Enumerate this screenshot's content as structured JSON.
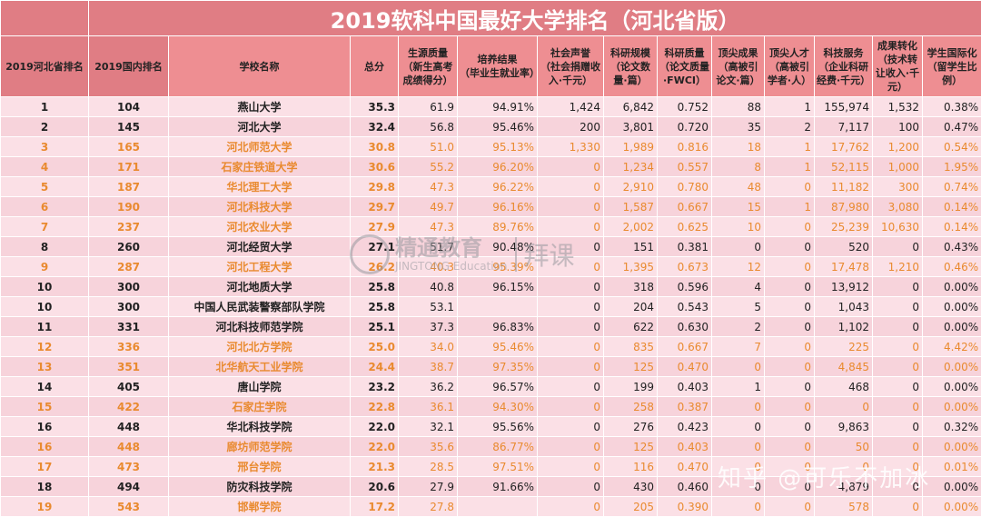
{
  "title": "2019软科中国最好大学排名（河北省版）",
  "headers": [
    {
      "main": "2019河北省排名",
      "sub": ""
    },
    {
      "main": "2019国内排名",
      "sub": ""
    },
    {
      "main": "学校名称",
      "sub": ""
    },
    {
      "main": "总分",
      "sub": ""
    },
    {
      "main": "生源质量",
      "sub": "（新生高考成绩得分）"
    },
    {
      "main": "培养结果",
      "sub": "（毕业生就业率）"
    },
    {
      "main": "社会声誉",
      "sub": "（社会捐赠收入·千元）"
    },
    {
      "main": "科研规模",
      "sub": "（论文数量·篇）"
    },
    {
      "main": "科研质量",
      "sub": "（论文质量·FWCI）"
    },
    {
      "main": "顶尖成果",
      "sub": "（高被引论文·篇）"
    },
    {
      "main": "顶尖人才",
      "sub": "（高被引学者·人）"
    },
    {
      "main": "科技服务",
      "sub": "（企业科研经费·千元）"
    },
    {
      "main": "成果转化",
      "sub": "（技术转让收入·千元）"
    },
    {
      "main": "学生国际化",
      "sub": "（留学生比例）"
    }
  ],
  "rows": [
    {
      "style": "black",
      "cells": [
        "1",
        "104",
        "燕山大学",
        "35.3",
        "61.9",
        "94.91%",
        "1,424",
        "6,842",
        "0.752",
        "88",
        "1",
        "155,974",
        "1,532",
        "0.38%"
      ]
    },
    {
      "style": "black",
      "cells": [
        "2",
        "145",
        "河北大学",
        "32.4",
        "56.8",
        "95.46%",
        "200",
        "3,801",
        "0.720",
        "35",
        "2",
        "7,117",
        "100",
        "0.47%"
      ]
    },
    {
      "style": "orange",
      "cells": [
        "3",
        "165",
        "河北师范大学",
        "30.8",
        "51.0",
        "95.13%",
        "1,330",
        "1,989",
        "0.816",
        "18",
        "1",
        "17,762",
        "1,200",
        "0.54%"
      ]
    },
    {
      "style": "orange",
      "cells": [
        "4",
        "171",
        "石家庄铁道大学",
        "30.6",
        "55.2",
        "96.20%",
        "0",
        "1,234",
        "0.557",
        "8",
        "1",
        "52,115",
        "1,000",
        "1.95%"
      ]
    },
    {
      "style": "orange",
      "cells": [
        "5",
        "187",
        "华北理工大学",
        "29.8",
        "47.3",
        "96.22%",
        "0",
        "2,910",
        "0.780",
        "48",
        "0",
        "11,182",
        "300",
        "0.74%"
      ]
    },
    {
      "style": "orange",
      "cells": [
        "6",
        "190",
        "河北科技大学",
        "29.7",
        "49.7",
        "96.16%",
        "0",
        "1,587",
        "0.667",
        "15",
        "1",
        "87,980",
        "3,080",
        "0.14%"
      ]
    },
    {
      "style": "orange",
      "cells": [
        "7",
        "237",
        "河北农业大学",
        "27.9",
        "47.3",
        "89.76%",
        "0",
        "2,002",
        "0.625",
        "10",
        "0",
        "25,239",
        "10,630",
        "0.14%"
      ]
    },
    {
      "style": "black",
      "cells": [
        "8",
        "260",
        "河北经贸大学",
        "27.1",
        "51.7",
        "90.48%",
        "0",
        "151",
        "0.381",
        "0",
        "0",
        "520",
        "0",
        "0.43%"
      ]
    },
    {
      "style": "orange",
      "cells": [
        "9",
        "287",
        "河北工程大学",
        "26.2",
        "40.3",
        "95.39%",
        "0",
        "1,395",
        "0.673",
        "12",
        "0",
        "17,478",
        "1,210",
        "0.46%"
      ]
    },
    {
      "style": "black",
      "cells": [
        "10",
        "300",
        "河北地质大学",
        "25.8",
        "40.8",
        "96.15%",
        "0",
        "318",
        "0.596",
        "4",
        "0",
        "13,912",
        "0",
        "0.00%"
      ]
    },
    {
      "style": "black",
      "cells": [
        "10",
        "300",
        "中国人民武装警察部队学院",
        "25.8",
        "53.1",
        "",
        "0",
        "204",
        "0.543",
        "5",
        "0",
        "1,043",
        "0",
        "0.00%"
      ]
    },
    {
      "style": "black",
      "cells": [
        "11",
        "331",
        "河北科技师范学院",
        "25.1",
        "37.3",
        "96.83%",
        "0",
        "622",
        "0.630",
        "2",
        "0",
        "1,102",
        "0",
        "0.00%"
      ]
    },
    {
      "style": "orange",
      "cells": [
        "12",
        "336",
        "河北北方学院",
        "25.0",
        "34.0",
        "95.46%",
        "0",
        "835",
        "0.667",
        "7",
        "0",
        "225",
        "0",
        "4.42%"
      ]
    },
    {
      "style": "orange",
      "cells": [
        "13",
        "351",
        "北华航天工业学院",
        "24.4",
        "38.7",
        "97.35%",
        "0",
        "125",
        "0.470",
        "0",
        "0",
        "4,845",
        "0",
        "0.00%"
      ]
    },
    {
      "style": "black",
      "cells": [
        "14",
        "405",
        "唐山学院",
        "23.2",
        "36.2",
        "96.57%",
        "0",
        "199",
        "0.403",
        "1",
        "0",
        "468",
        "0",
        "0.00%"
      ]
    },
    {
      "style": "orange",
      "cells": [
        "15",
        "422",
        "石家庄学院",
        "22.8",
        "36.1",
        "94.30%",
        "0",
        "258",
        "0.387",
        "0",
        "0",
        "0",
        "0",
        "0.00%"
      ]
    },
    {
      "style": "black",
      "cells": [
        "16",
        "448",
        "华北科技学院",
        "22.0",
        "32.1",
        "95.56%",
        "0",
        "276",
        "0.423",
        "0",
        "0",
        "9,863",
        "0",
        "0.32%"
      ]
    },
    {
      "style": "orange",
      "cells": [
        "16",
        "448",
        "廊坊师范学院",
        "22.0",
        "35.6",
        "86.77%",
        "0",
        "125",
        "0.403",
        "0",
        "0",
        "50",
        "0",
        "0.00%"
      ]
    },
    {
      "style": "orange",
      "cells": [
        "17",
        "473",
        "邢台学院",
        "21.3",
        "28.5",
        "97.51%",
        "0",
        "116",
        "0.470",
        "0",
        "0",
        "0",
        "0",
        "0.01%"
      ]
    },
    {
      "style": "black",
      "cells": [
        "18",
        "494",
        "防灾科技学院",
        "20.6",
        "27.9",
        "91.66%",
        "0",
        "430",
        "0.460",
        "0",
        "0",
        "4,879",
        "0",
        "0.00%"
      ]
    },
    {
      "style": "orange",
      "cells": [
        "19",
        "543",
        "邯郸学院",
        "17.2",
        "27.8",
        "",
        "0",
        "205",
        "0.390",
        "0",
        "0",
        "578",
        "0",
        "0.00%"
      ]
    }
  ],
  "watermark": {
    "brand": "精通教育",
    "brand_en": "JINGTONG Education",
    "partner": "拜课",
    "author": "知乎 @可乐不加冰"
  }
}
